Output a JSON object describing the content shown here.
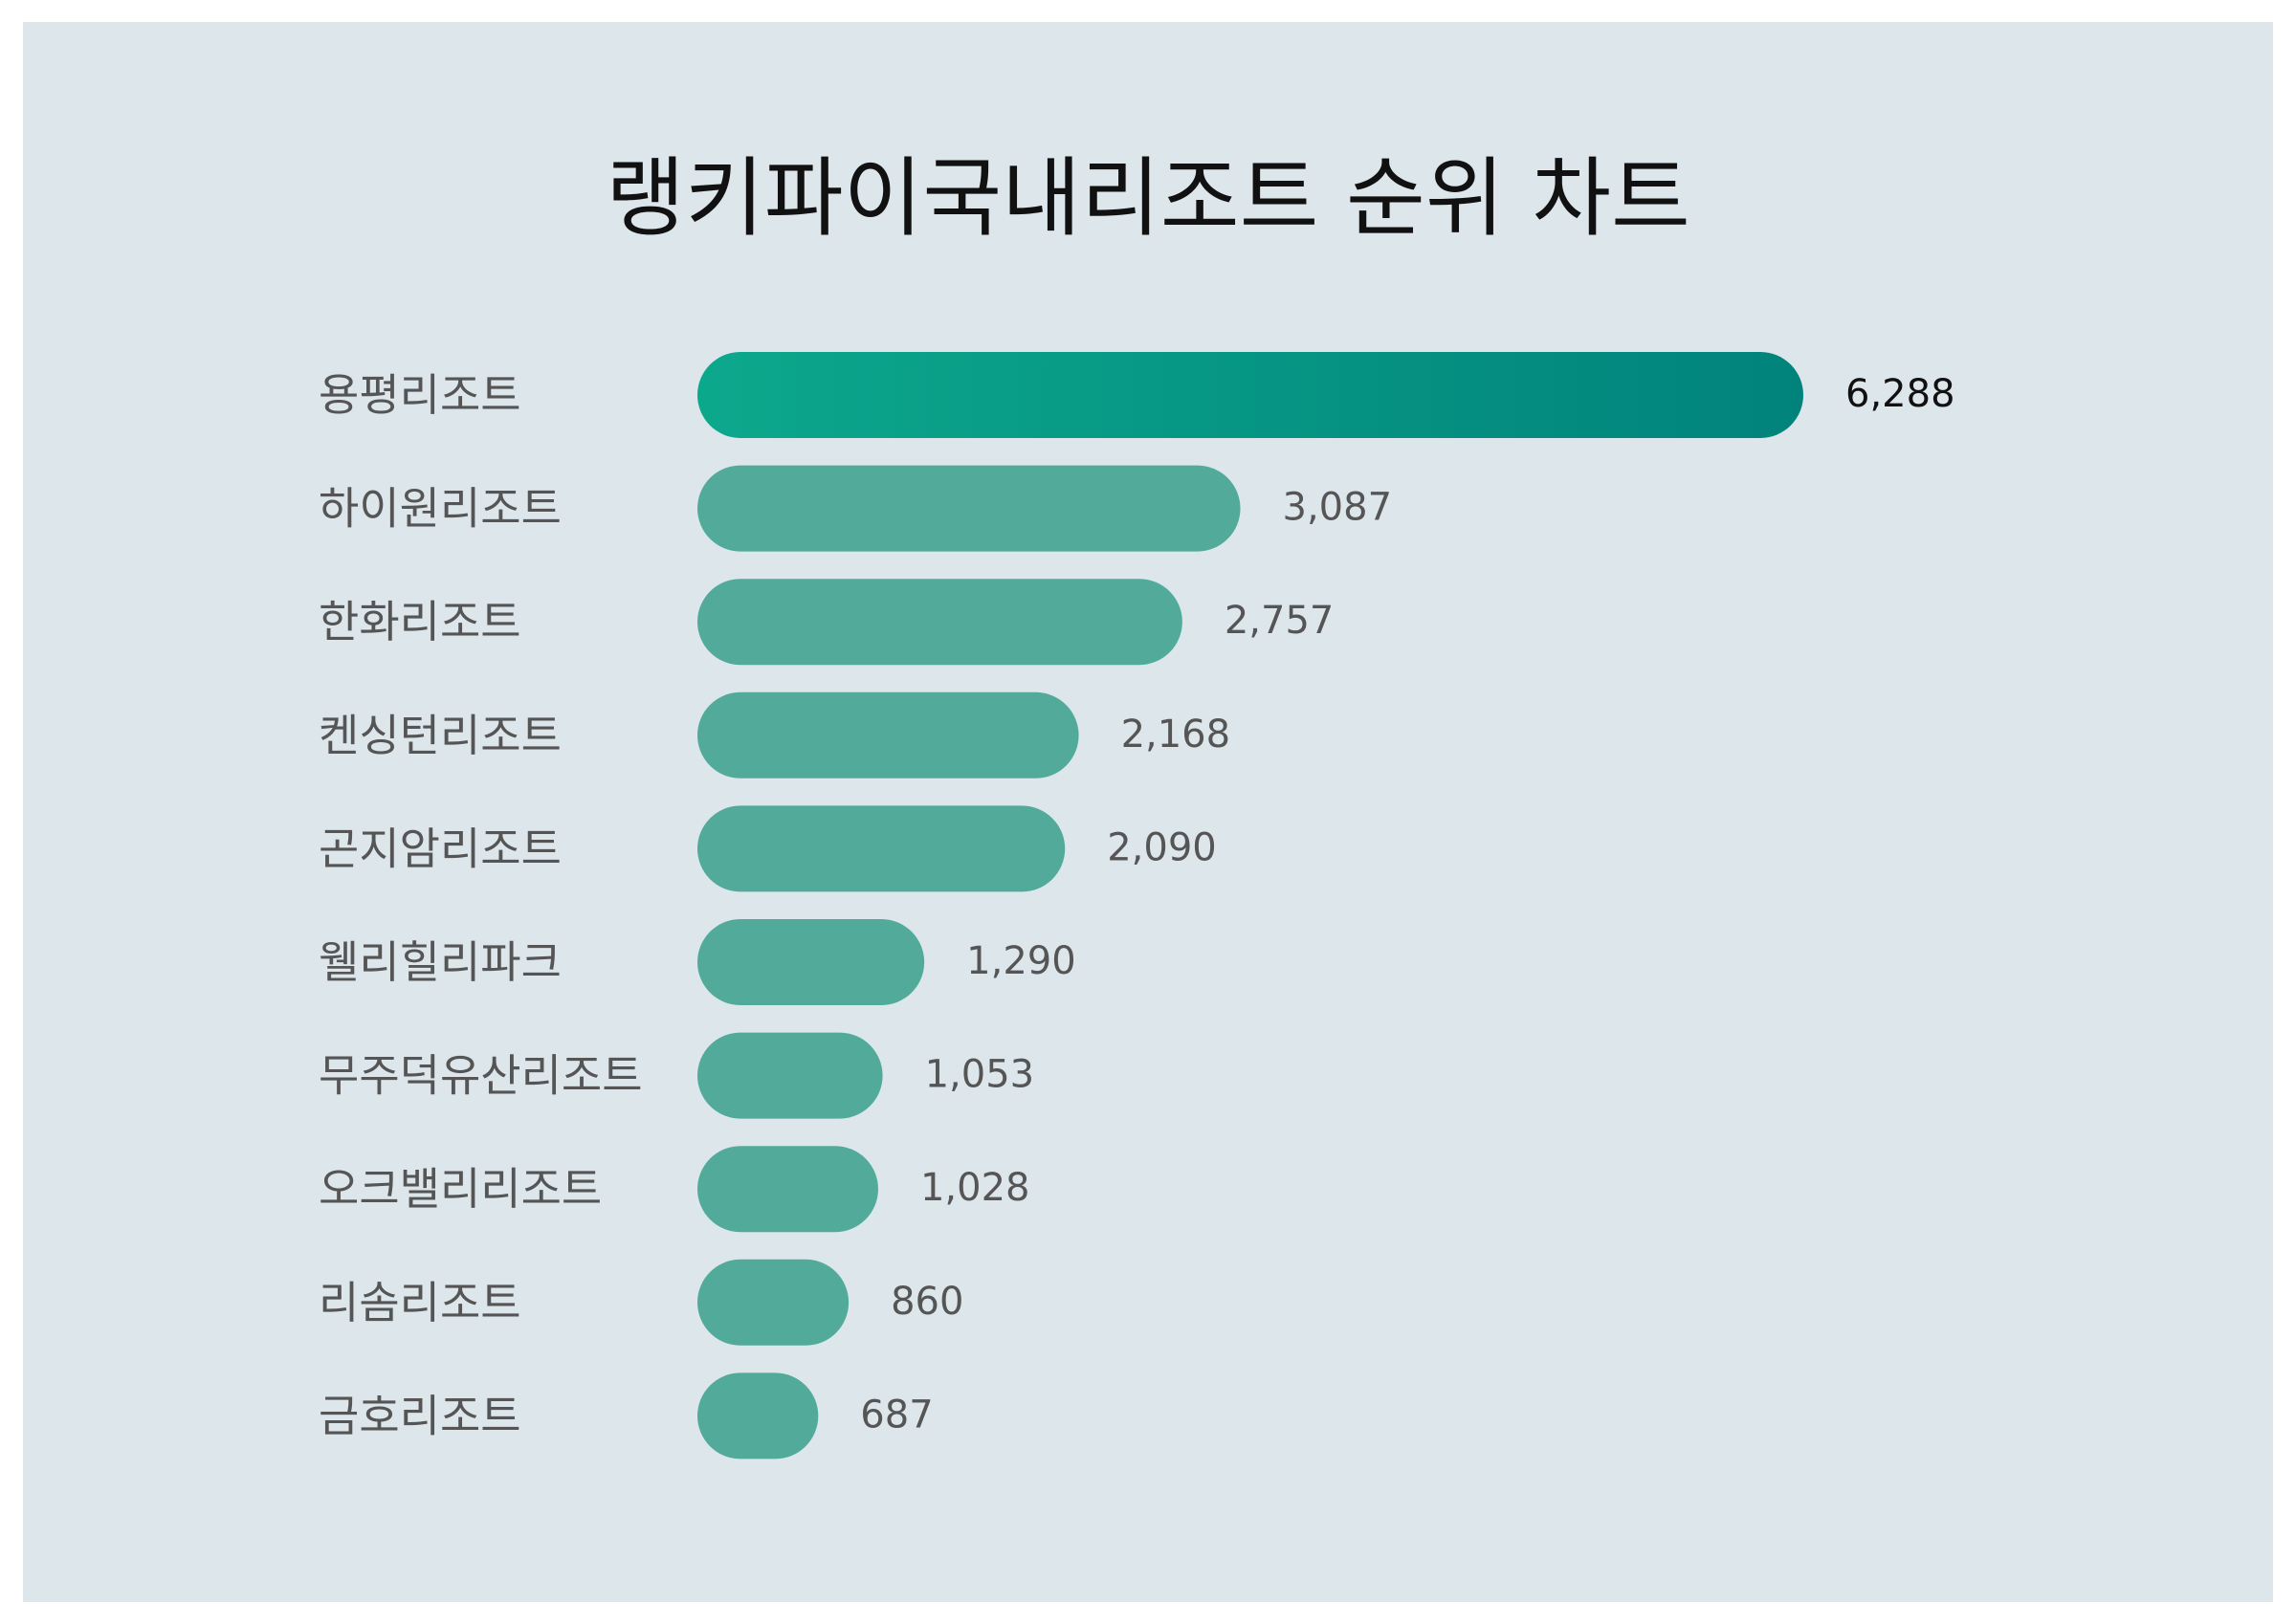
{
  "chart_data": {
    "type": "bar",
    "orientation": "horizontal",
    "title": "랭키파이국내리조트 순위 차트",
    "categories": [
      "용평리조트",
      "하이원리조트",
      "한화리조트",
      "켄싱턴리조트",
      "곤지암리조트",
      "웰리힐리파크",
      "무주덕유산리조트",
      "오크밸리리조트",
      "리솜리조트",
      "금호리조트"
    ],
    "values": [
      6288,
      3087,
      2757,
      2168,
      2090,
      1290,
      1053,
      1028,
      860,
      687
    ],
    "value_labels": [
      "6,288",
      "3,087",
      "2,757",
      "2,168",
      "2,090",
      "1,290",
      "1,053",
      "1,028",
      "860",
      "687"
    ],
    "grid": false,
    "legend": "none"
  },
  "colors": {
    "background": "#dce6eb",
    "page": "#ffffff",
    "bar": "#52ab9a",
    "top_bar_gradient_start": "#0ca88c",
    "top_bar_gradient_end": "#01837c"
  }
}
